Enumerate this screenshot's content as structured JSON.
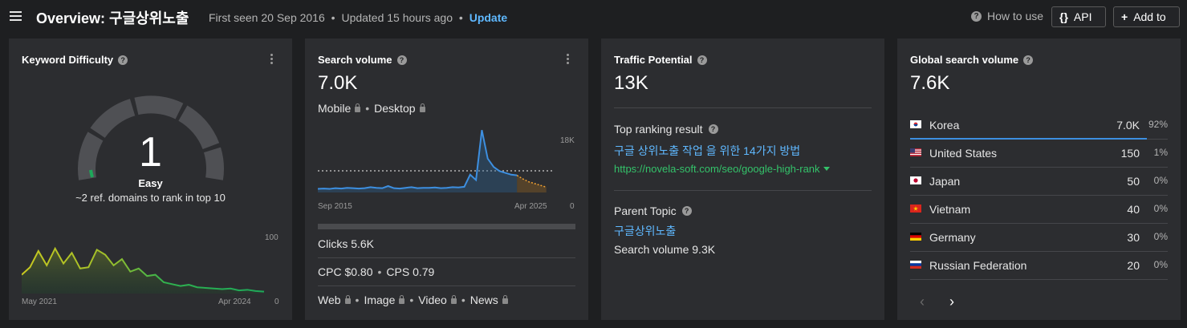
{
  "header": {
    "title": "Overview: 구글상위노출",
    "first_seen": "First seen 20 Sep 2016",
    "dot": "•",
    "updated": "Updated 15 hours ago",
    "update_link": "Update",
    "how_to_use": "How to use",
    "api_label": "API",
    "add_to_label": "Add to",
    "api_icon": "{}",
    "add_icon": "+"
  },
  "kd": {
    "title": "Keyword Difficulty",
    "value": "1",
    "level": "Easy",
    "subtitle": "~2 ref. domains to rank in top 10",
    "chart": {
      "y_max_label": "100",
      "y_min_label": "0",
      "x_start": "May 2021",
      "x_end": "Apr 2024"
    }
  },
  "sv": {
    "title": "Search volume",
    "value": "7.0K",
    "mobile": "Mobile",
    "desktop": "Desktop",
    "chart": {
      "y_max_label": "18K",
      "y_min_label": "0",
      "x_start": "Sep 2015",
      "x_end": "Apr 2025"
    },
    "clicks": "Clicks 5.6K",
    "cpc": "CPC $0.80",
    "cps": "CPS 0.79",
    "serp_types": [
      "Web",
      "Image",
      "Video",
      "News"
    ]
  },
  "tp": {
    "title": "Traffic Potential",
    "value": "13K",
    "top_result_label": "Top ranking result",
    "top_result_title": "구글 상위노출 작업 을 위한 14가지 방법",
    "top_result_url": "https://novela-soft.com/seo/google-high-rank",
    "parent_topic_label": "Parent Topic",
    "parent_topic": "구글상위노출",
    "parent_volume": "Search volume 9.3K"
  },
  "gsv": {
    "title": "Global search volume",
    "value": "7.6K",
    "countries": [
      {
        "name": "Korea",
        "value": "7.0K",
        "pct": "92%",
        "share": 0.92
      },
      {
        "name": "United States",
        "value": "150",
        "pct": "1%",
        "share": 0.01
      },
      {
        "name": "Japan",
        "value": "50",
        "pct": "0%",
        "share": 0
      },
      {
        "name": "Vietnam",
        "value": "40",
        "pct": "0%",
        "share": 0
      },
      {
        "name": "Germany",
        "value": "30",
        "pct": "0%",
        "share": 0
      },
      {
        "name": "Russian Federation",
        "value": "20",
        "pct": "0%",
        "share": 0
      }
    ],
    "prev_icon": "‹",
    "next_icon": "›"
  },
  "colors": {
    "accent_blue": "#5fb8ff",
    "url_green": "#34c26a",
    "easy_green": "#1ea85a",
    "card_bg": "#2c2d30",
    "page_bg": "#1e1f21"
  },
  "chart_data": [
    {
      "type": "area",
      "name": "kd-history",
      "x_range": [
        "May 2021",
        "Apr 2024"
      ],
      "ylim": [
        0,
        100
      ],
      "values": [
        30,
        42,
        68,
        45,
        72,
        48,
        65,
        40,
        42,
        70,
        62,
        45,
        55,
        35,
        40,
        28,
        30,
        18,
        15,
        12,
        14,
        10,
        9,
        8,
        7,
        8,
        5,
        6,
        4,
        3
      ]
    },
    {
      "type": "line",
      "name": "search-volume-history",
      "x_range": [
        "Sep 2015",
        "Apr 2025"
      ],
      "ylim": [
        0,
        18000
      ],
      "values": [
        1000,
        1100,
        1000,
        1200,
        1100,
        1300,
        1200,
        1100,
        1200,
        1500,
        1300,
        1200,
        1800,
        1200,
        1100,
        1300,
        1500,
        1200,
        1300,
        1300,
        1400,
        1200,
        1300,
        1500,
        1400,
        1600,
        5000,
        3500,
        17500,
        9500,
        7200,
        6000,
        5500,
        5000,
        4800
      ],
      "forecast": [
        4800,
        3800,
        3000,
        2500,
        2000,
        1500
      ]
    }
  ]
}
